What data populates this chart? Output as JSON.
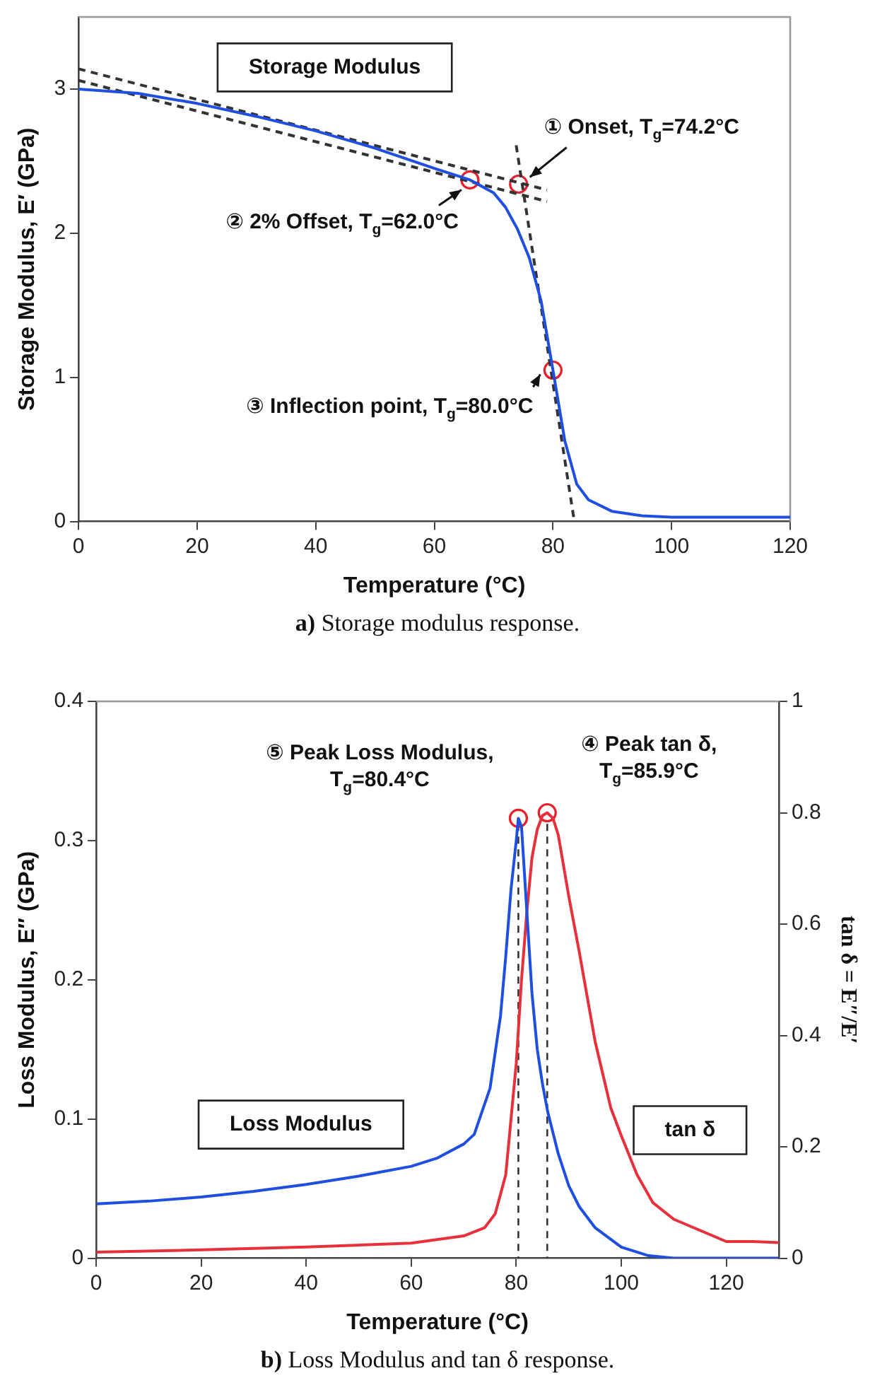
{
  "chart_data": [
    {
      "type": "line",
      "xlabel": "Temperature (°C)",
      "ylabel": "Storage Modulus, E′ (GPa)",
      "xlim": [
        0,
        120
      ],
      "xticks": [
        0,
        20,
        40,
        60,
        80,
        100,
        120
      ],
      "ylim": [
        0,
        3.5
      ],
      "yticks": [
        0,
        1,
        2,
        3
      ],
      "grid": false,
      "marker": "none",
      "line_style": "solid",
      "series": [
        {
          "name": "Storage Modulus",
          "color": "#1f4fe0",
          "x": [
            0,
            10,
            20,
            30,
            40,
            50,
            60,
            66,
            70,
            72,
            74,
            76,
            78,
            80,
            82,
            84,
            86,
            90,
            95,
            100,
            110,
            120
          ],
          "values": [
            3.0,
            2.97,
            2.9,
            2.81,
            2.71,
            2.59,
            2.45,
            2.37,
            2.28,
            2.18,
            2.03,
            1.83,
            1.53,
            1.05,
            0.56,
            0.26,
            0.15,
            0.07,
            0.04,
            0.03,
            0.03,
            0.03
          ]
        },
        {
          "type": "line",
          "color": "#333333",
          "line_style": "dashed",
          "x": [
            0,
            79
          ],
          "values": [
            3.14,
            2.3
          ]
        },
        {
          "type": "line",
          "color": "#333333",
          "line_style": "dashed",
          "x": [
            0,
            79
          ],
          "values": [
            3.06,
            2.22
          ]
        },
        {
          "type": "line",
          "color": "#333333",
          "line_style": "dashed",
          "x": [
            73.8,
            83.6
          ],
          "values": [
            2.61,
            0
          ]
        },
        {
          "type": "scatter",
          "marker": "circle",
          "color": "#e8202c",
          "x": [
            66,
            74.2,
            80
          ],
          "values": [
            2.37,
            2.34,
            1.05
          ]
        }
      ],
      "annotations": [
        {
          "text": "① Onset, T$_{g}$=74.2°C",
          "x": 74.2,
          "y": 2.34
        },
        {
          "text": "② 2% Offset, T$_{g}$=62.0°C",
          "x": 66,
          "y": 2.37
        },
        {
          "text": "③ Inflection point, T$_{g}$=80.0°C",
          "x": 80,
          "y": 1.05
        },
        "a) Storage modulus response."
      ]
    },
    {
      "type": "line",
      "xlabel": "Temperature (°C)",
      "ylabel": "Loss Modulus, E″ (GPa)",
      "y2label": "tan δ = E″/E′",
      "xlim": [
        0,
        130
      ],
      "xticks": [
        0,
        20,
        40,
        60,
        80,
        100,
        120
      ],
      "ylim": [
        0,
        0.4
      ],
      "yticks": [
        0,
        0.1,
        0.2,
        0.3,
        0.4
      ],
      "y2lim": [
        0,
        1
      ],
      "y2ticks": [
        0,
        0.2,
        0.4,
        0.6,
        0.8,
        1
      ],
      "grid": false,
      "marker": "none",
      "line_style": "solid",
      "series": [
        {
          "name": "Loss Modulus",
          "color": "#1f4fe0",
          "x": [
            0,
            10,
            20,
            30,
            40,
            50,
            60,
            65,
            70,
            72,
            75,
            77,
            78,
            79,
            80,
            80.4,
            81,
            82,
            83,
            84,
            85,
            86,
            88,
            90,
            92,
            95,
            100,
            105,
            110,
            120,
            130
          ],
          "values": [
            0.039,
            0.041,
            0.044,
            0.048,
            0.053,
            0.059,
            0.066,
            0.072,
            0.082,
            0.089,
            0.122,
            0.174,
            0.217,
            0.265,
            0.3,
            0.316,
            0.31,
            0.25,
            0.19,
            0.15,
            0.125,
            0.105,
            0.075,
            0.052,
            0.037,
            0.022,
            0.008,
            0.002,
            0,
            0,
            0
          ]
        },
        {
          "name": "tan δ",
          "axis": "y2",
          "color": "#e8303c",
          "x": [
            0,
            20,
            40,
            60,
            70,
            74,
            76,
            78,
            79,
            80,
            81,
            82,
            83,
            84,
            85,
            85.9,
            87,
            88,
            90,
            92,
            95,
            98,
            100,
            103,
            106,
            110,
            115,
            120,
            125,
            130
          ],
          "values": [
            0.011,
            0.015,
            0.02,
            0.027,
            0.04,
            0.055,
            0.08,
            0.15,
            0.25,
            0.35,
            0.5,
            0.62,
            0.72,
            0.77,
            0.795,
            0.8,
            0.79,
            0.76,
            0.65,
            0.55,
            0.39,
            0.27,
            0.22,
            0.15,
            0.1,
            0.07,
            0.05,
            0.03,
            0.03,
            0.028
          ]
        },
        {
          "type": "scatter",
          "marker": "circle",
          "color": "#e8202c",
          "x": [
            80.4
          ],
          "values": [
            0.316
          ]
        },
        {
          "type": "scatter",
          "marker": "circle",
          "axis": "y2",
          "color": "#e8202c",
          "x": [
            85.9
          ],
          "values": [
            0.8
          ]
        }
      ],
      "ref_lines": [
        {
          "axis": "x",
          "value": 80.4,
          "color": "#333333",
          "line_style": "dashed"
        },
        {
          "axis": "x",
          "value": 85.9,
          "color": "#333333",
          "line_style": "dashed"
        }
      ],
      "annotations": [
        {
          "text": "⑤ Peak Loss Modulus,\nT$_{g}$=80.4°C",
          "x": 80.4,
          "y": 0.316
        },
        {
          "text": "④ Peak tan δ,\nT$_{g}$=85.9°C",
          "x": 85.9,
          "y": 0.32
        },
        "b) Loss Modulus and tan δ response."
      ]
    }
  ]
}
